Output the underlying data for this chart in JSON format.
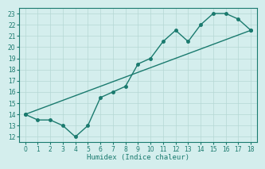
{
  "jagged_x": [
    0,
    1,
    2,
    3,
    4,
    5,
    6,
    7,
    8,
    9,
    10,
    11,
    12,
    13,
    14,
    15,
    16,
    17,
    18
  ],
  "jagged_y": [
    14,
    13.5,
    13.5,
    13,
    12,
    13,
    15.5,
    16,
    16.5,
    18.5,
    19,
    20.5,
    21.5,
    20.5,
    22,
    23,
    23,
    22.5,
    21.5
  ],
  "trend_x": [
    0,
    18
  ],
  "trend_y": [
    14,
    21.5
  ],
  "color": "#1a7a6e",
  "bg_color": "#d4eeed",
  "grid_color": "#b5d8d4",
  "xlabel": "Humidex (Indice chaleur)",
  "xlim": [
    -0.5,
    18.5
  ],
  "ylim": [
    11.5,
    23.5
  ],
  "yticks": [
    12,
    13,
    14,
    15,
    16,
    17,
    18,
    19,
    20,
    21,
    22,
    23
  ],
  "xticks": [
    0,
    1,
    2,
    3,
    4,
    5,
    6,
    7,
    8,
    9,
    10,
    11,
    12,
    13,
    14,
    15,
    16,
    17,
    18
  ],
  "xlabel_fontsize": 6.5,
  "tick_fontsize": 5.5,
  "linewidth": 1.0,
  "markersize": 2.5
}
